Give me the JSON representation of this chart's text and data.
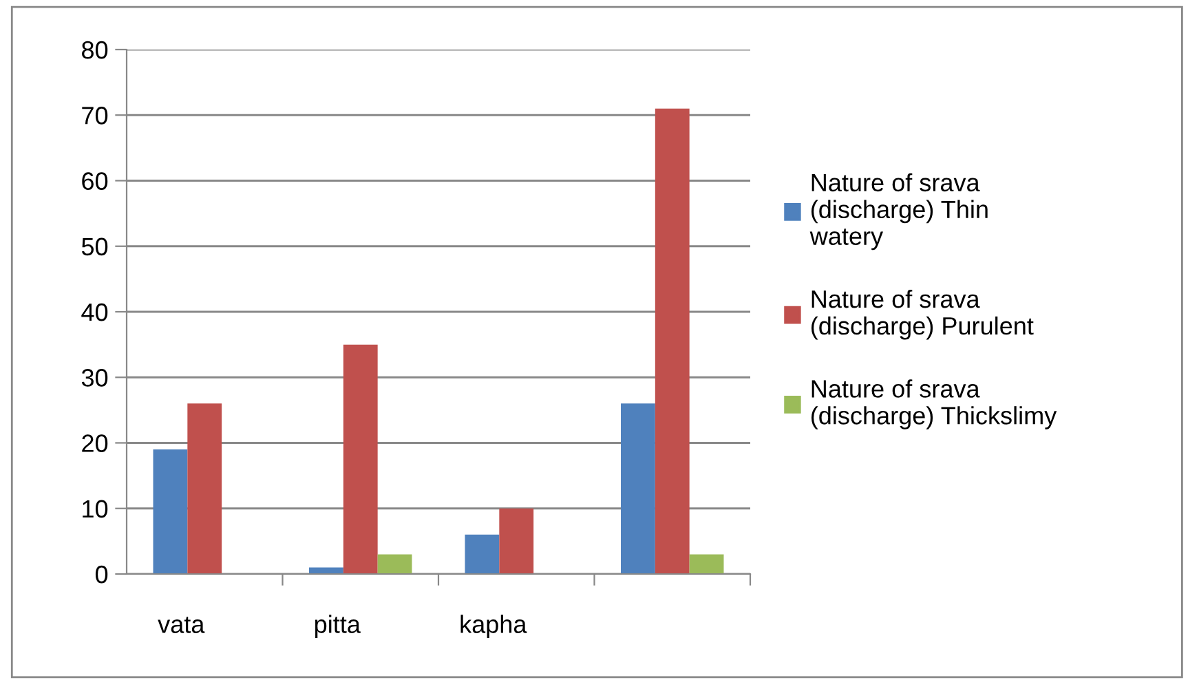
{
  "chart_data": {
    "type": "bar",
    "categories": [
      "vata",
      "pitta",
      "kapha",
      null
    ],
    "series": [
      {
        "name": "Nature of srava\n(discharge) Thin\nwatery",
        "color": "#4f81bd",
        "values": [
          19,
          1,
          6,
          26
        ]
      },
      {
        "name": "Nature of srava\n(discharge) Purulent",
        "color": "#c0504d",
        "values": [
          26,
          35,
          10,
          71
        ]
      },
      {
        "name": "Nature of srava\n(discharge) Thickslimy",
        "color": "#9bbb59",
        "values": [
          0,
          3,
          0,
          3
        ]
      }
    ],
    "ylim": [
      0,
      80
    ],
    "yticks": [
      0,
      10,
      20,
      30,
      40,
      50,
      60,
      70,
      80
    ],
    "grid": "y",
    "legend": "right"
  }
}
